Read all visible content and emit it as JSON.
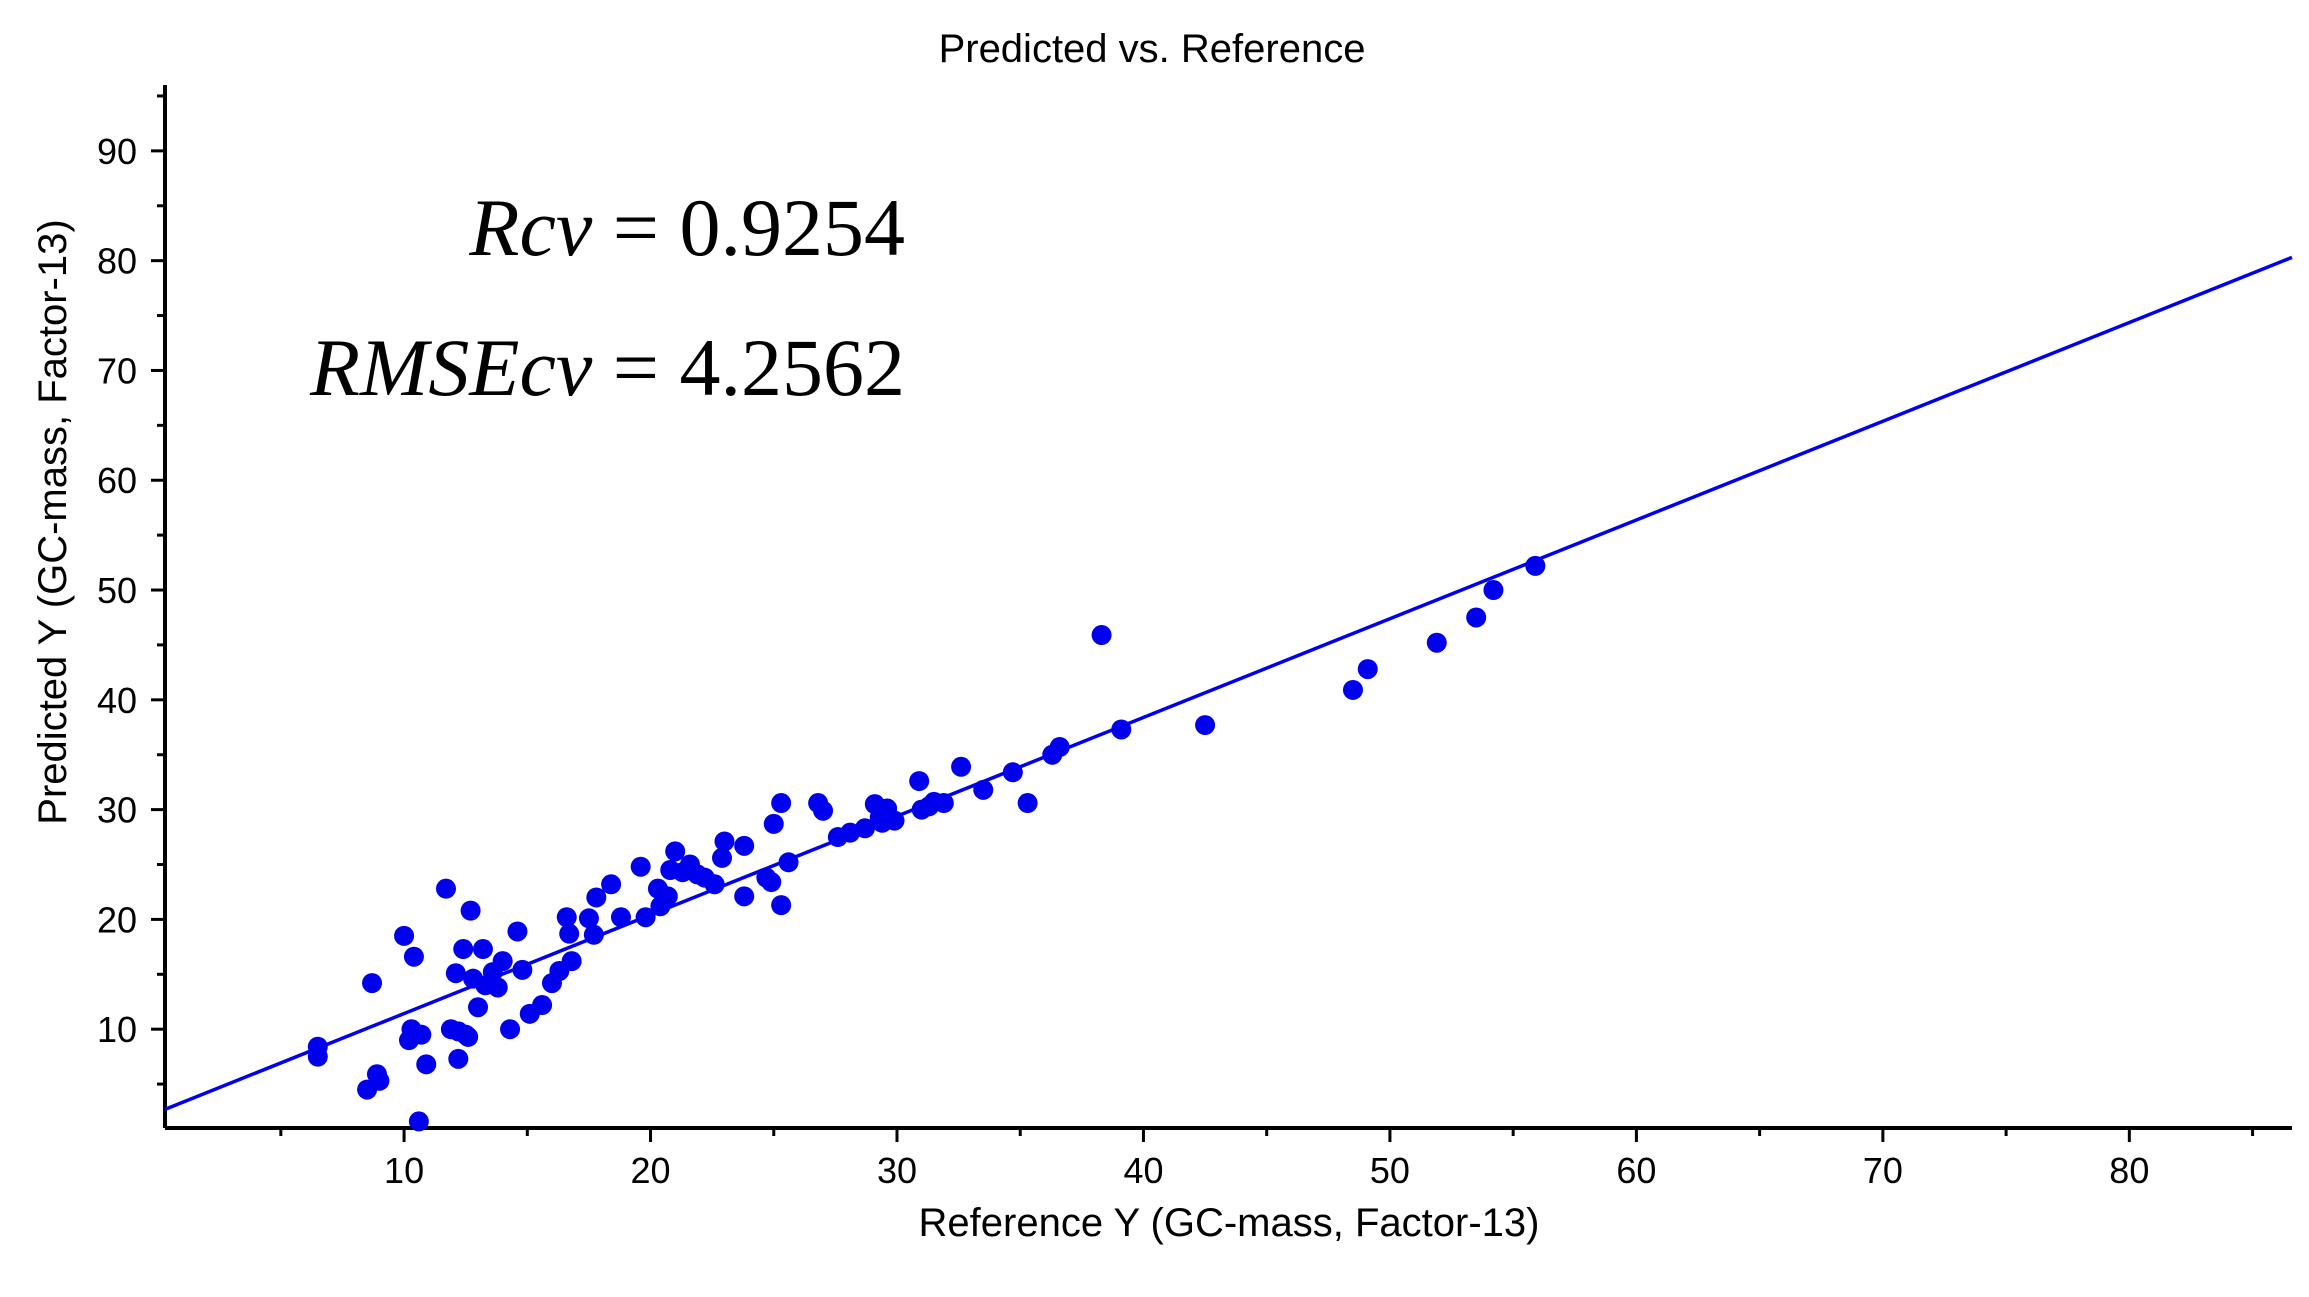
{
  "chart_data": {
    "type": "scatter",
    "title": "Predicted vs. Reference",
    "xlabel": "Reference Y (GC-mass, Factor-13)",
    "ylabel": "Predicted Y (GC-mass, Factor-13)",
    "xlim": [
      0.3,
      86.6
    ],
    "ylim": [
      1.0,
      96.0
    ],
    "x_ticks": [
      10,
      20,
      30,
      40,
      50,
      60,
      70,
      80
    ],
    "y_ticks": [
      10,
      20,
      30,
      40,
      50,
      60,
      70,
      80,
      90
    ],
    "x_minor_step": 5,
    "y_minor_step": 5,
    "grid": false,
    "colors": {
      "points": "#0000ee",
      "line": "#0000ee",
      "axes": "#000000"
    },
    "annotations": [
      {
        "name": "Rcv",
        "value": "0.9254"
      },
      {
        "name": "RMSEcv",
        "value": "4.2562"
      }
    ],
    "regression_line": {
      "x": [
        0.3,
        86.6
      ],
      "y": [
        2.7,
        80.3
      ]
    },
    "points": [
      [
        6.5,
        8.4
      ],
      [
        6.5,
        7.5
      ],
      [
        8.5,
        4.5
      ],
      [
        8.7,
        14.2
      ],
      [
        8.9,
        5.9
      ],
      [
        9.0,
        5.3
      ],
      [
        10.0,
        18.5
      ],
      [
        10.2,
        9.0
      ],
      [
        10.3,
        10.0
      ],
      [
        10.4,
        16.6
      ],
      [
        10.7,
        9.5
      ],
      [
        10.6,
        1.6
      ],
      [
        10.9,
        6.8
      ],
      [
        11.7,
        22.8
      ],
      [
        11.9,
        10.0
      ],
      [
        12.1,
        15.1
      ],
      [
        12.2,
        9.8
      ],
      [
        12.2,
        7.3
      ],
      [
        12.4,
        17.3
      ],
      [
        12.5,
        9.5
      ],
      [
        12.6,
        9.3
      ],
      [
        12.7,
        20.8
      ],
      [
        12.8,
        14.6
      ],
      [
        13.0,
        12.0
      ],
      [
        13.2,
        17.3
      ],
      [
        13.3,
        14.0
      ],
      [
        13.6,
        15.2
      ],
      [
        13.8,
        13.8
      ],
      [
        14.0,
        16.2
      ],
      [
        14.3,
        10.0
      ],
      [
        14.6,
        18.9
      ],
      [
        14.8,
        15.4
      ],
      [
        15.1,
        11.4
      ],
      [
        15.6,
        12.2
      ],
      [
        16.0,
        14.2
      ],
      [
        16.3,
        15.3
      ],
      [
        16.6,
        20.2
      ],
      [
        16.7,
        18.7
      ],
      [
        16.8,
        16.2
      ],
      [
        17.5,
        20.1
      ],
      [
        17.7,
        18.6
      ],
      [
        17.8,
        22.0
      ],
      [
        18.4,
        23.2
      ],
      [
        18.8,
        20.2
      ],
      [
        19.6,
        24.8
      ],
      [
        19.8,
        20.2
      ],
      [
        20.3,
        22.8
      ],
      [
        20.4,
        21.2
      ],
      [
        20.7,
        22.1
      ],
      [
        20.8,
        24.5
      ],
      [
        21.0,
        26.2
      ],
      [
        21.3,
        24.3
      ],
      [
        21.6,
        25.0
      ],
      [
        21.9,
        24.1
      ],
      [
        22.2,
        23.8
      ],
      [
        22.6,
        23.2
      ],
      [
        22.9,
        25.6
      ],
      [
        23.0,
        27.1
      ],
      [
        23.8,
        26.7
      ],
      [
        23.8,
        22.1
      ],
      [
        24.7,
        23.8
      ],
      [
        24.9,
        23.4
      ],
      [
        25.0,
        28.7
      ],
      [
        25.3,
        30.6
      ],
      [
        25.3,
        21.3
      ],
      [
        25.6,
        25.2
      ],
      [
        26.8,
        30.6
      ],
      [
        27.0,
        29.9
      ],
      [
        27.6,
        27.5
      ],
      [
        28.1,
        27.9
      ],
      [
        28.7,
        28.3
      ],
      [
        29.1,
        30.5
      ],
      [
        29.3,
        29.3
      ],
      [
        29.4,
        28.8
      ],
      [
        29.6,
        30.1
      ],
      [
        29.9,
        29.0
      ],
      [
        30.9,
        32.6
      ],
      [
        31.0,
        30.0
      ],
      [
        31.3,
        30.3
      ],
      [
        31.5,
        30.7
      ],
      [
        31.9,
        30.6
      ],
      [
        32.6,
        33.9
      ],
      [
        33.5,
        31.8
      ],
      [
        34.7,
        33.4
      ],
      [
        35.3,
        30.6
      ],
      [
        36.3,
        35.0
      ],
      [
        36.6,
        35.7
      ],
      [
        38.3,
        45.9
      ],
      [
        39.1,
        37.3
      ],
      [
        42.5,
        37.7
      ],
      [
        48.5,
        40.9
      ],
      [
        49.1,
        42.8
      ],
      [
        51.9,
        45.2
      ],
      [
        53.5,
        47.5
      ],
      [
        54.2,
        50.0
      ],
      [
        55.9,
        52.2
      ]
    ]
  }
}
